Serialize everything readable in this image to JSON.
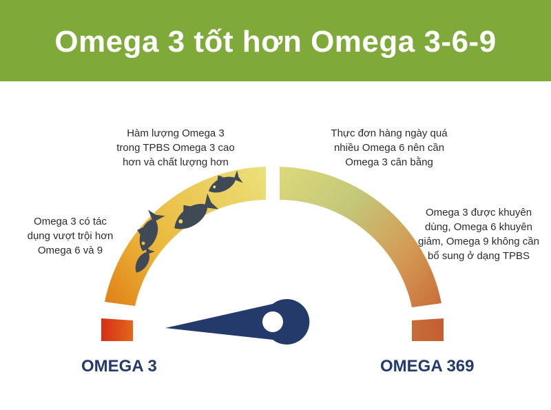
{
  "header": {
    "title": "Omega 3 tốt hơn Omega 3-6-9"
  },
  "notes": {
    "n1": [
      "Omega 3 có tác",
      "dụng vượt trội hơn",
      "Omega 6 và 9"
    ],
    "n2": [
      "Hàm lượng Omega 3",
      "trong TPBS Omega 3 cao",
      "hơn và chất lượng hơn"
    ],
    "n3": [
      "Thực đơn hàng ngày quá",
      "nhiều Omega 6 nên cần",
      "Omega 3 cân bằng"
    ],
    "n4": [
      "Omega 3 được khuyên",
      "dùng, Omega 6 khuyên",
      "giảm, Omega 9 không cần",
      "bổ sung ở dạng TPBS"
    ]
  },
  "gauge": {
    "left_label": "OMEGA 3",
    "right_label": "OMEGA 369",
    "colors": {
      "red": "#d9361a",
      "orange": "#e08b1a",
      "yellow": "#e9d86a",
      "green": "#bcc97a",
      "brown": "#c8763c",
      "needle": "#233a6b",
      "fish": "#3f4a56"
    },
    "icons": [
      "fish-icon",
      "fish-icon",
      "fish-icon"
    ]
  }
}
